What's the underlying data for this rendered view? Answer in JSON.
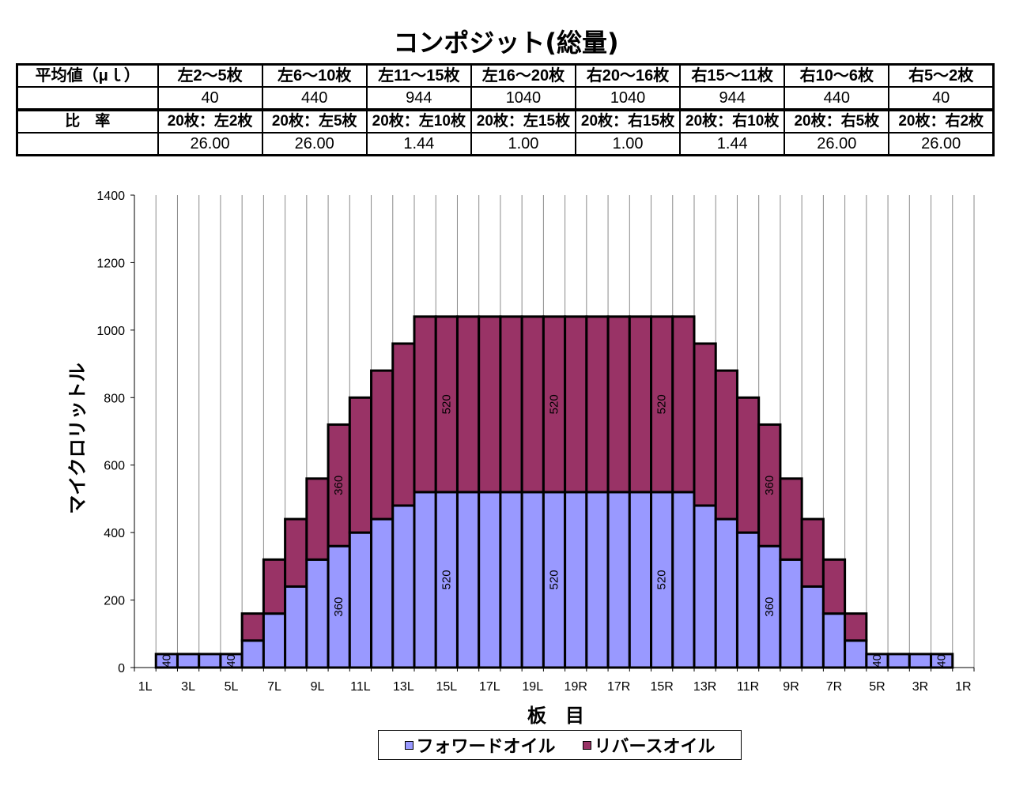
{
  "chart_data": {
    "type": "bar",
    "stacked": true,
    "title": "コンポジット(総量)",
    "xlabel": "板　目",
    "ylabel": "マイクロリットル",
    "ylim": [
      0,
      1400
    ],
    "yticks": [
      0,
      200,
      400,
      600,
      800,
      1000,
      1200,
      1400
    ],
    "grid": {
      "x": true,
      "y": false
    },
    "legend": "bottom",
    "categories": [
      "1L",
      "",
      "3L",
      "",
      "5L",
      "",
      "7L",
      "",
      "9L",
      "",
      "11L",
      "",
      "13L",
      "",
      "15L",
      "",
      "17L",
      "",
      "19L",
      "",
      "19R",
      "",
      "17R",
      "",
      "15R",
      "",
      "13R",
      "",
      "11R",
      "",
      "9R",
      "",
      "7R",
      "",
      "5R",
      "",
      "3R",
      "",
      "1R"
    ],
    "series": [
      {
        "name": "フォワードオイル",
        "color": "#9999FF",
        "values": [
          0,
          40,
          40,
          40,
          40,
          80,
          160,
          240,
          320,
          360,
          400,
          440,
          480,
          520,
          520,
          520,
          520,
          520,
          520,
          520,
          520,
          520,
          520,
          520,
          520,
          520,
          480,
          440,
          400,
          360,
          320,
          240,
          160,
          80,
          40,
          40,
          40,
          40,
          0
        ],
        "label_indices": [
          1,
          4,
          9,
          14,
          19,
          24,
          29,
          34,
          37
        ]
      },
      {
        "name": "リバースオイル",
        "color": "#993366",
        "values": [
          0,
          0,
          0,
          0,
          0,
          80,
          160,
          200,
          240,
          360,
          400,
          440,
          480,
          520,
          520,
          520,
          520,
          520,
          520,
          520,
          520,
          520,
          520,
          520,
          520,
          520,
          480,
          440,
          400,
          360,
          240,
          200,
          160,
          80,
          0,
          0,
          0,
          0,
          0
        ],
        "label_indices": [
          9,
          14,
          19,
          24,
          29
        ]
      }
    ]
  },
  "table": {
    "avg_label": "平均値（μｌ）",
    "groups": [
      "左2～5枚",
      "左6～10枚",
      "左11～15枚",
      "左16～20枚",
      "右20～16枚",
      "右15～11枚",
      "右10～6枚",
      "右5～2枚"
    ],
    "averages": [
      "40",
      "440",
      "944",
      "1040",
      "1040",
      "944",
      "440",
      "40"
    ],
    "ratio_label": "比　率",
    "ratio_headers": [
      "20枚：左2枚",
      "20枚：左5枚",
      "20枚：左10枚",
      "20枚：左15枚",
      "20枚：右15枚",
      "20枚：右10枚",
      "20枚：右5枚",
      "20枚：右2枚"
    ],
    "ratios": [
      "26.00",
      "26.00",
      "1.44",
      "1.00",
      "1.00",
      "1.44",
      "26.00",
      "26.00"
    ]
  }
}
